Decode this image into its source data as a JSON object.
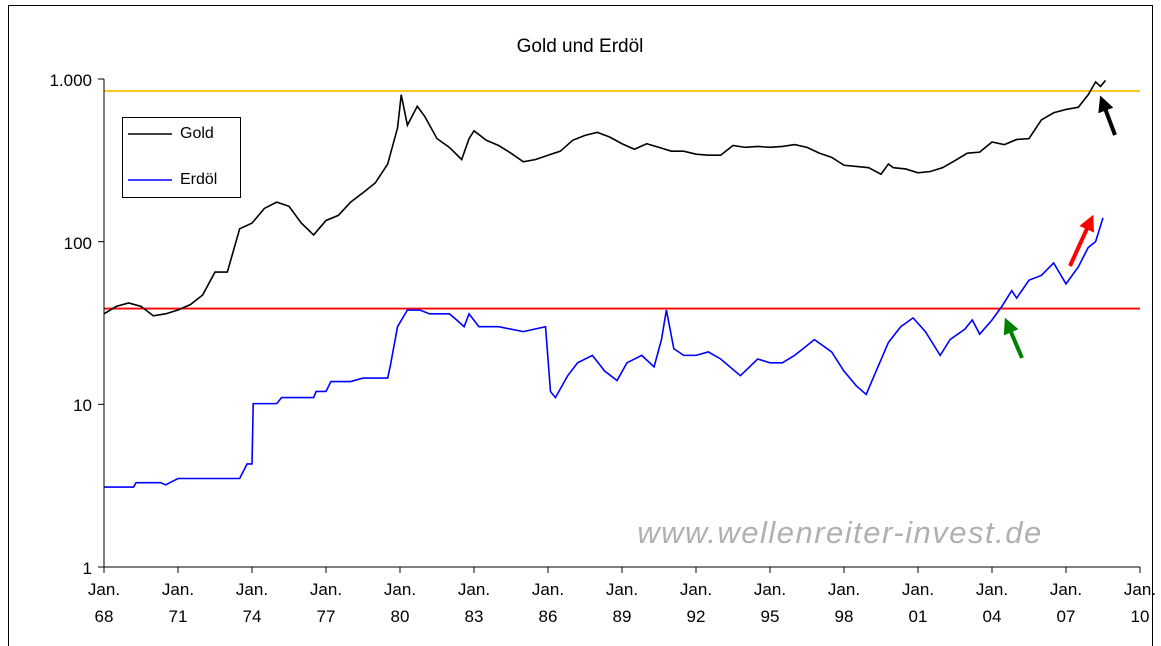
{
  "chart_data": {
    "type": "line",
    "title": "Gold und Erdöl",
    "watermark": "www.wellenreiter-invest.de",
    "log_y": true,
    "legend": "upper left",
    "ylim": [
      1,
      1000
    ],
    "yticks": [
      1,
      10,
      100,
      {
        "value": 1000,
        "label": "1.000"
      }
    ],
    "xlim": [
      1968,
      2010
    ],
    "xticks": [
      {
        "value": 1968,
        "label": "Jan.\n68"
      },
      {
        "value": 1971,
        "label": "Jan.\n71"
      },
      {
        "value": 1974,
        "label": "Jan.\n74"
      },
      {
        "value": 1977,
        "label": "Jan.\n77"
      },
      {
        "value": 1980,
        "label": "Jan.\n80"
      },
      {
        "value": 1983,
        "label": "Jan.\n83"
      },
      {
        "value": 1986,
        "label": "Jan.\n86"
      },
      {
        "value": 1989,
        "label": "Jan.\n89"
      },
      {
        "value": 1992,
        "label": "Jan.\n92"
      },
      {
        "value": 1995,
        "label": "Jan.\n95"
      },
      {
        "value": 1998,
        "label": "Jan.\n98"
      },
      {
        "value": 2001,
        "label": "Jan.\n01"
      },
      {
        "value": 2004,
        "label": "Jan.\n04"
      },
      {
        "value": 2007,
        "label": "Jan.\n07"
      },
      {
        "value": 2010,
        "label": "Jan.\n10"
      }
    ],
    "hlines": [
      {
        "value": 844,
        "color": "#ffc000"
      },
      {
        "value": 38.8,
        "color": "#ff0000"
      }
    ],
    "series": [
      {
        "name": "Gold",
        "color": "#000000",
        "x": [
          1968,
          1968.5,
          1969,
          1969.5,
          1970,
          1970.5,
          1971,
          1971.5,
          1972,
          1972.5,
          1973,
          1973.5,
          1974,
          1974.5,
          1975,
          1975.5,
          1976,
          1976.5,
          1977,
          1977.5,
          1978,
          1978.5,
          1979,
          1979.5,
          1979.9,
          1980.05,
          1980.3,
          1980.7,
          1981,
          1981.5,
          1982,
          1982.5,
          1982.8,
          1983,
          1983.5,
          1984,
          1984.5,
          1985,
          1985.5,
          1986,
          1986.5,
          1987,
          1987.5,
          1988,
          1988.5,
          1989,
          1989.5,
          1990,
          1990.5,
          1991,
          1991.5,
          1992,
          1992.5,
          1993,
          1993.5,
          1994,
          1994.5,
          1995,
          1995.5,
          1996,
          1996.5,
          1997,
          1997.5,
          1998,
          1998.5,
          1999,
          1999.5,
          1999.8,
          2000,
          2000.5,
          2001,
          2001.5,
          2002,
          2002.5,
          2003,
          2003.5,
          2004,
          2004.5,
          2005,
          2005.5,
          2006,
          2006.5,
          2007,
          2007.5,
          2007.9,
          2008.2,
          2008.4,
          2008.6
        ],
        "values": [
          36,
          40,
          42,
          40,
          35,
          36,
          38,
          41,
          47,
          65,
          65,
          120,
          130,
          160,
          175,
          165,
          130,
          110,
          135,
          145,
          175,
          200,
          230,
          300,
          500,
          800,
          520,
          680,
          590,
          430,
          380,
          320,
          430,
          480,
          420,
          390,
          350,
          310,
          320,
          340,
          360,
          420,
          450,
          470,
          440,
          400,
          370,
          400,
          380,
          360,
          360,
          345,
          340,
          340,
          390,
          380,
          385,
          380,
          385,
          395,
          380,
          350,
          330,
          295,
          290,
          285,
          260,
          300,
          285,
          280,
          265,
          270,
          285,
          315,
          350,
          355,
          410,
          395,
          425,
          430,
          560,
          620,
          650,
          670,
          800,
          960,
          900,
          980
        ]
      },
      {
        "name": "Erdöl",
        "color": "#0000ff",
        "x": [
          1968,
          1969.2,
          1969.3,
          1970.3,
          1970.5,
          1971,
          1973.5,
          1973.8,
          1974,
          1974.05,
          1975,
          1975.2,
          1976.5,
          1976.6,
          1977,
          1977.2,
          1978,
          1978.5,
          1979.5,
          1979.6,
          1979.9,
          1980.3,
          1980.8,
          1981.2,
          1982,
          1982.3,
          1982.6,
          1982.8,
          1983.2,
          1984,
          1985,
          1985.9,
          1986.1,
          1986.3,
          1986.8,
          1987.2,
          1987.8,
          1988.3,
          1988.8,
          1989.2,
          1989.8,
          1990.3,
          1990.6,
          1990.8,
          1991.1,
          1991.5,
          1992,
          1992.5,
          1993,
          1993.8,
          1994.5,
          1995,
          1995.5,
          1996,
          1996.8,
          1997.5,
          1998,
          1998.5,
          1998.9,
          1999.3,
          1999.8,
          2000.3,
          2000.8,
          2001.3,
          2001.9,
          2002.3,
          2002.9,
          2003.2,
          2003.5,
          2004,
          2004.4,
          2004.8,
          2005,
          2005.5,
          2006,
          2006.5,
          2007,
          2007.5,
          2007.9,
          2008.2,
          2008.5
        ],
        "values": [
          3.1,
          3.1,
          3.3,
          3.3,
          3.2,
          3.5,
          3.5,
          4.3,
          4.3,
          10.1,
          10.1,
          11,
          11,
          12,
          12,
          13.8,
          13.8,
          14.5,
          14.5,
          17,
          30,
          38,
          38,
          36,
          36,
          33,
          30,
          36,
          30,
          30,
          28,
          30,
          12,
          11,
          15,
          18,
          20,
          16,
          14,
          18,
          20,
          17,
          25,
          38,
          22,
          20,
          20,
          21,
          19,
          15,
          19,
          18,
          18,
          20,
          25,
          21,
          16,
          13,
          11.5,
          16,
          24,
          30,
          34,
          28,
          20,
          25,
          29,
          33,
          27,
          33,
          40,
          50,
          45,
          58,
          62,
          74,
          55,
          70,
          92,
          100,
          140
        ]
      }
    ]
  }
}
